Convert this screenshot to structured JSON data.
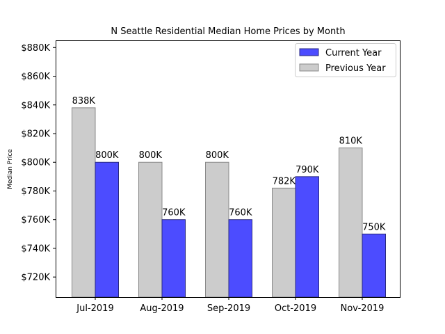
{
  "chart_data": {
    "type": "bar",
    "title": "N Seattle Residential Median Home Prices by Month",
    "xlabel": "",
    "ylabel": "Median Price",
    "categories": [
      "Jul-2019",
      "Aug-2019",
      "Sep-2019",
      "Oct-2019",
      "Nov-2019"
    ],
    "ylim": [
      706,
      885
    ],
    "y_ticks": [
      720,
      740,
      760,
      780,
      800,
      820,
      840,
      860,
      880
    ],
    "y_tick_labels": [
      "$720K",
      "$740K",
      "$760K",
      "$780K",
      "$800K",
      "$820K",
      "$840K",
      "$860K",
      "$880K"
    ],
    "series": [
      {
        "name": "Previous Year",
        "values": [
          838,
          800,
          800,
          782,
          810
        ],
        "labels": [
          "838K",
          "800K",
          "800K",
          "782K",
          "810K"
        ],
        "color": "#cccccc",
        "edge_color": "#888888"
      },
      {
        "name": "Current Year",
        "values": [
          800,
          760,
          760,
          790,
          750
        ],
        "labels": [
          "800K",
          "760K",
          "760K",
          "790K",
          "750K"
        ],
        "color": "#4c4cff",
        "edge_color": "#2a2a80"
      }
    ],
    "legend": {
      "placement": "top-right",
      "order": [
        "Current Year",
        "Previous Year"
      ]
    },
    "grid": false
  }
}
